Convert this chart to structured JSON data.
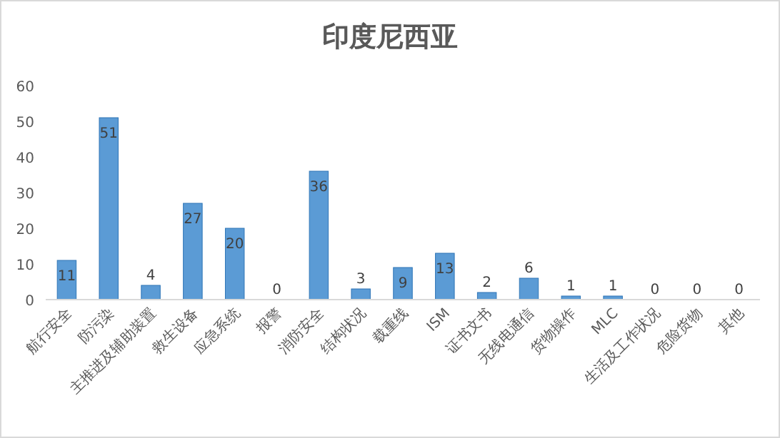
{
  "chart_data": {
    "type": "bar",
    "title": "印度尼西亚",
    "categories": [
      "航行安全",
      "防污染",
      "主推进及辅助装置",
      "救生设备",
      "应急系统",
      "报警",
      "消防安全",
      "结构状况",
      "载重线",
      "ISM",
      "证书文书",
      "无线电通信",
      "货物操作",
      "MLC",
      "生活及工作状况",
      "危险货物",
      "其他"
    ],
    "values": [
      11,
      51,
      4,
      27,
      20,
      0,
      36,
      3,
      9,
      13,
      2,
      6,
      1,
      1,
      0,
      0,
      0
    ],
    "color": "#5b9bd5",
    "ylim": [
      0,
      60
    ],
    "yticks": [
      0,
      10,
      20,
      30,
      40,
      50,
      60
    ],
    "grid": false,
    "data_labels": true
  }
}
